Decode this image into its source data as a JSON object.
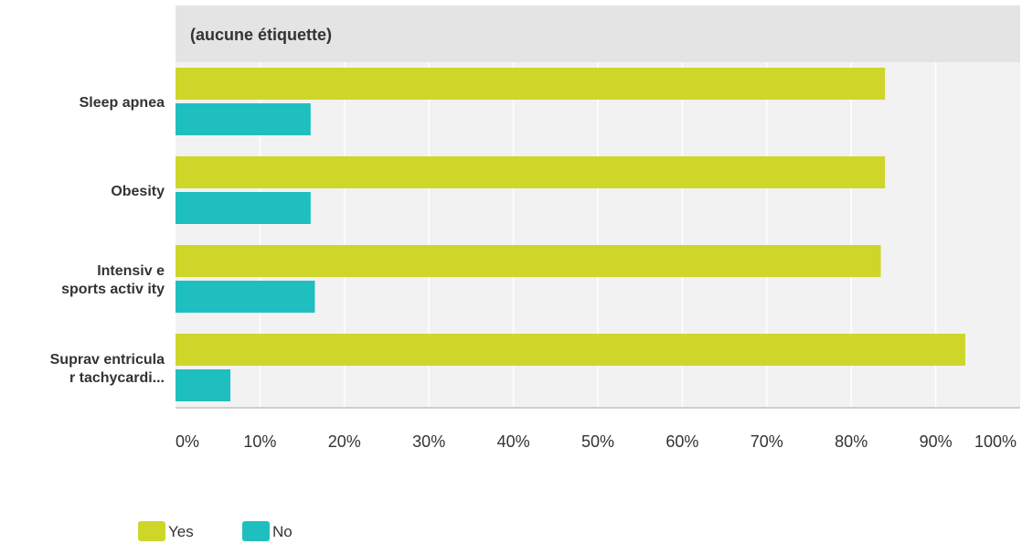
{
  "chart_data": {
    "type": "bar",
    "orientation": "horizontal",
    "header": "(aucune étiquette)",
    "categories": [
      [
        "Sleep apnea"
      ],
      [
        "Obesity"
      ],
      [
        "Intensiv e",
        "sports activ ity"
      ],
      [
        "Suprav entricula",
        "r tachycardi..."
      ]
    ],
    "series": [
      {
        "name": "Yes",
        "color": "#cfd62a",
        "values": [
          84,
          84,
          83.5,
          93.5
        ]
      },
      {
        "name": "No",
        "color": "#20bfbf",
        "values": [
          16,
          16,
          16.5,
          6.5
        ]
      }
    ],
    "x_ticks": [
      "0%",
      "10%",
      "20%",
      "30%",
      "40%",
      "50%",
      "60%",
      "70%",
      "80%",
      "90%",
      "100%"
    ],
    "xlim": [
      0,
      100
    ],
    "grid": true,
    "legend_position": "bottom-left"
  }
}
